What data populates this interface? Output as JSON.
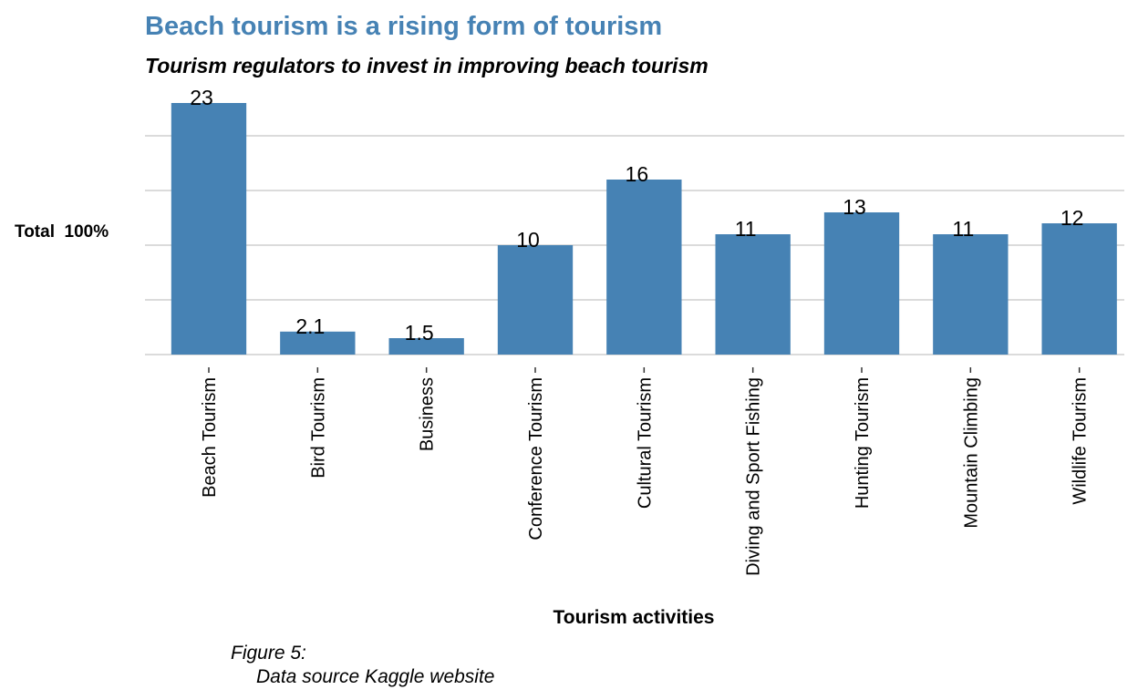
{
  "chart_data": {
    "type": "bar",
    "title": "Beach tourism is a rising form of tourism",
    "subtitle": "Tourism regulators to invest in improving beach tourism",
    "xlabel": "Tourism activities",
    "ylabel": "Total  100%",
    "categories": [
      "Beach Tourism",
      "Bird Tourism",
      "Business",
      "Conference Tourism",
      "Cultural Tourism",
      "Diving and Sport Fishing",
      "Hunting Tourism",
      "Mountain Climbing",
      "Wildlife Tourism"
    ],
    "values": [
      23,
      2.1,
      1.5,
      10,
      16,
      11,
      13,
      11,
      12
    ],
    "data_labels": [
      "23",
      "2.1",
      "1.5",
      "10",
      "16",
      "11",
      "13",
      "11",
      "12"
    ],
    "ylim": [
      0,
      23
    ],
    "grid": true,
    "bar_color": "#4682b4",
    "title_color": "#4682b4"
  },
  "caption": {
    "line1": "Figure 5:",
    "line2": "Data source Kaggle website"
  }
}
